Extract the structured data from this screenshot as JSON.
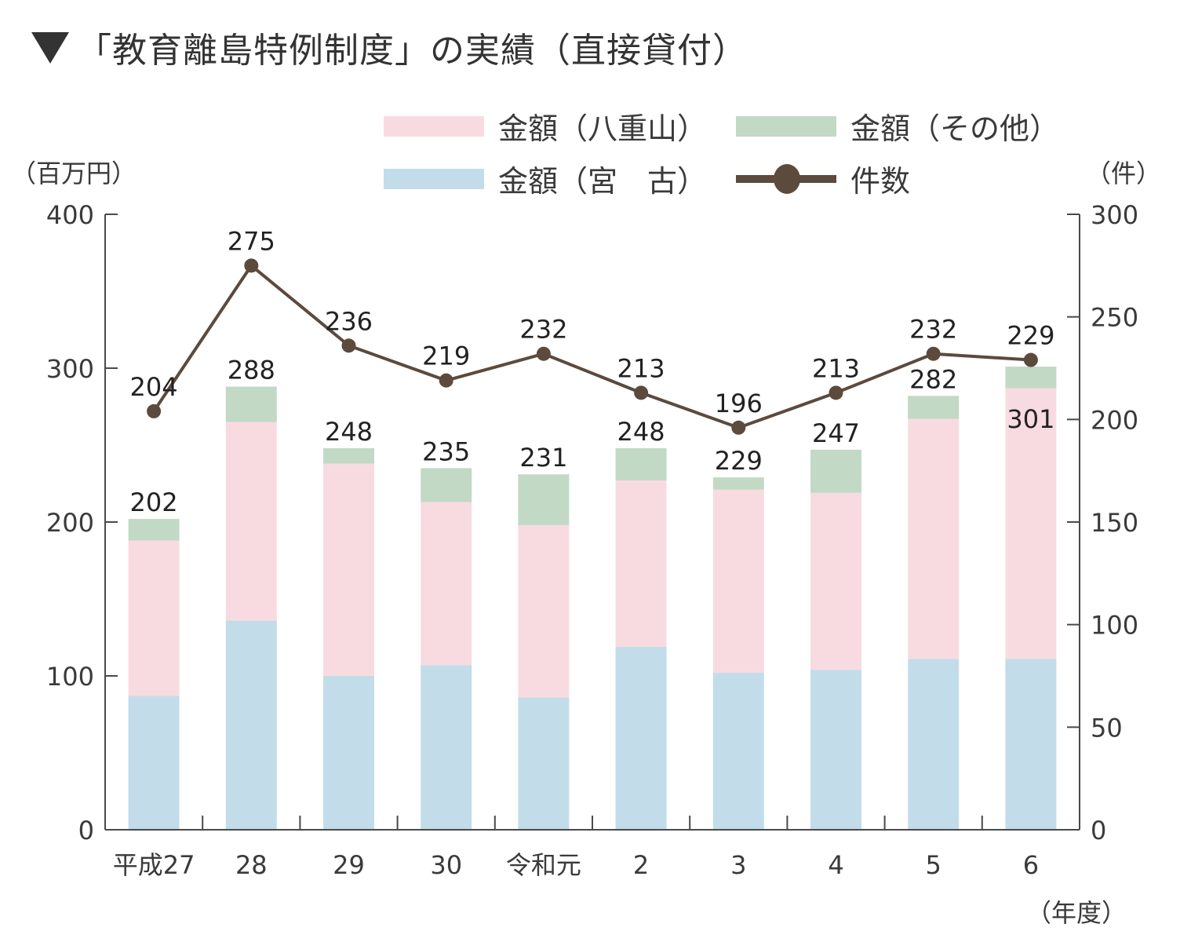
{
  "title": "「教育離島特例制度」の実績（直接貸付）",
  "title_marker": "triangle-down",
  "units": {
    "left": "（百万円）",
    "right": "（件）",
    "x": "（年度）"
  },
  "legend": [
    {
      "key": "yaeyama",
      "label": "金額（八重山）",
      "type": "bar",
      "color": "#f8dbe0"
    },
    {
      "key": "other",
      "label": "金額（その他）",
      "type": "bar",
      "color": "#c2d9c5"
    },
    {
      "key": "miyako",
      "label": "金額（宮　古）",
      "type": "bar",
      "color": "#c2dde9"
    },
    {
      "key": "count",
      "label": "件数",
      "type": "line",
      "color": "#5c4a3d"
    }
  ],
  "chart_data": {
    "type": "bar",
    "subtype": "stacked-bar-with-line",
    "title": "「教育離島特例制度」の実績（直接貸付）",
    "xlabel": "（年度）",
    "ylabel": "（百万円）",
    "y2label": "（件）",
    "categories": [
      "平成27",
      "28",
      "29",
      "30",
      "令和元",
      "2",
      "3",
      "4",
      "5",
      "6"
    ],
    "ylim": [
      0,
      400
    ],
    "yticks": [
      0,
      100,
      200,
      300,
      400
    ],
    "y2lim": [
      0,
      300
    ],
    "y2ticks": [
      0,
      50,
      100,
      150,
      200,
      250,
      300
    ],
    "grid": false,
    "legend_position": "top-right",
    "series": [
      {
        "name": "金額（宮　古）",
        "axis": "left",
        "type": "bar",
        "color": "#c2dde9",
        "values": [
          87,
          136,
          100,
          107,
          86,
          119,
          102,
          104,
          111,
          111
        ]
      },
      {
        "name": "金額（八重山）",
        "axis": "left",
        "type": "bar",
        "color": "#f8dbe0",
        "values": [
          101,
          129,
          138,
          106,
          112,
          108,
          119,
          115,
          156,
          176
        ]
      },
      {
        "name": "金額（その他）",
        "axis": "left",
        "type": "bar",
        "color": "#c2d9c5",
        "values": [
          14,
          23,
          10,
          22,
          33,
          21,
          8,
          28,
          15,
          14
        ]
      },
      {
        "name": "件数",
        "axis": "right",
        "type": "line",
        "color": "#5c4a3d",
        "values": [
          204,
          275,
          236,
          219,
          232,
          213,
          196,
          213,
          232,
          229
        ]
      }
    ],
    "bar_totals": [
      202,
      288,
      248,
      235,
      231,
      248,
      229,
      247,
      282,
      301
    ],
    "count_labels": [
      204,
      275,
      236,
      219,
      232,
      213,
      196,
      213,
      232,
      229
    ]
  }
}
